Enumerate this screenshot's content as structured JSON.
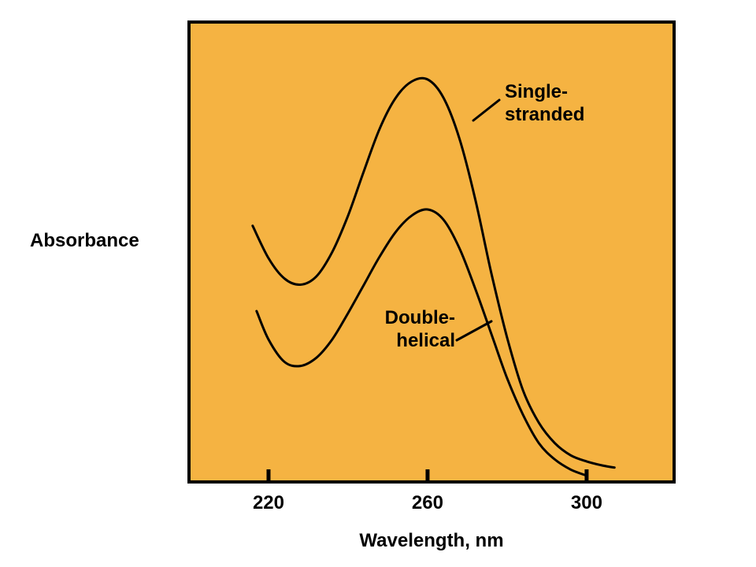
{
  "chart_data": {
    "type": "line",
    "title": "",
    "xlabel": "Wavelength, nm",
    "ylabel": "Absorbance",
    "xlim": [
      200,
      322
    ],
    "ylim": [
      0,
      1
    ],
    "xticks": [
      220,
      260,
      300
    ],
    "grid": false,
    "legend": "none",
    "colors": {
      "plot_background": "#F5B342",
      "frame": "#000000",
      "line": "#000000"
    },
    "series": [
      {
        "name": "Single-stranded",
        "label_lines": [
          "Single-",
          "stranded"
        ],
        "x": [
          216,
          220,
          224,
          228,
          232,
          236,
          240,
          244,
          248,
          252,
          256,
          260,
          264,
          268,
          272,
          276,
          280,
          284,
          288,
          292,
          296,
          300,
          304,
          307
        ],
        "y": [
          0.615,
          0.535,
          0.485,
          0.47,
          0.49,
          0.55,
          0.64,
          0.75,
          0.855,
          0.93,
          0.97,
          0.975,
          0.93,
          0.83,
          0.68,
          0.5,
          0.34,
          0.21,
          0.13,
          0.08,
          0.05,
          0.035,
          0.025,
          0.02
        ]
      },
      {
        "name": "Double-helical",
        "label_lines": [
          "Double-",
          "helical"
        ],
        "x": [
          217,
          220,
          224,
          228,
          232,
          236,
          240,
          244,
          248,
          252,
          256,
          260,
          264,
          268,
          272,
          276,
          280,
          284,
          288,
          292,
          296,
          300
        ],
        "y": [
          0.405,
          0.335,
          0.28,
          0.27,
          0.29,
          0.335,
          0.4,
          0.47,
          0.54,
          0.6,
          0.64,
          0.655,
          0.63,
          0.56,
          0.46,
          0.35,
          0.24,
          0.15,
          0.08,
          0.04,
          0.015,
          0.0
        ]
      }
    ]
  }
}
